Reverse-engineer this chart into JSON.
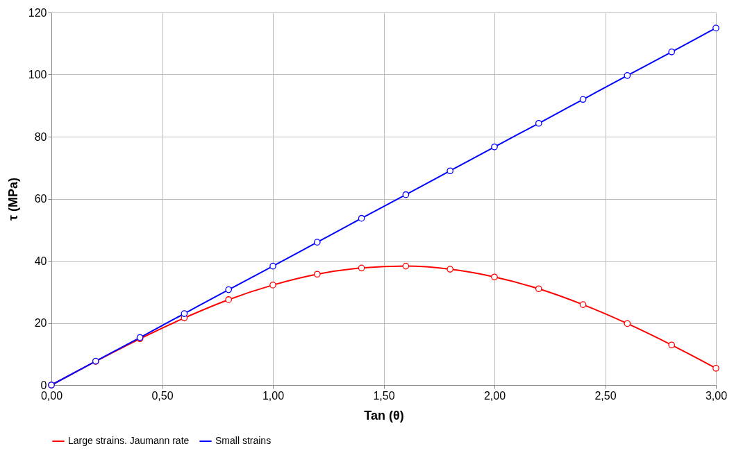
{
  "chart_data": {
    "type": "line",
    "xlabel": "Tan (θ)",
    "ylabel": "τ (MPa)",
    "x": [
      0,
      0.2,
      0.4,
      0.6,
      0.8,
      1.0,
      1.2,
      1.4,
      1.6,
      1.8,
      2.0,
      2.2,
      2.4,
      2.6,
      2.8,
      3.0
    ],
    "series": [
      {
        "name": "Large strains. Jaumann rate",
        "color": "#ff0000",
        "values": [
          0,
          7.6,
          14.9,
          21.6,
          27.5,
          32.2,
          35.7,
          37.7,
          38.3,
          37.3,
          34.8,
          31.0,
          25.9,
          19.8,
          12.9,
          5.4
        ]
      },
      {
        "name": "Small strains",
        "color": "#0000ff",
        "values": [
          0,
          7.7,
          15.3,
          23.0,
          30.7,
          38.3,
          46.0,
          53.7,
          61.3,
          69.0,
          76.7,
          84.3,
          92.0,
          99.7,
          107.3,
          115.0
        ]
      }
    ],
    "xlim": [
      0,
      3
    ],
    "xticks": [
      {
        "value": 0,
        "label": "0,00"
      },
      {
        "value": 0.5,
        "label": "0,50"
      },
      {
        "value": 1,
        "label": "1,00"
      },
      {
        "value": 1.5,
        "label": "1,50"
      },
      {
        "value": 2,
        "label": "2,00"
      },
      {
        "value": 2.5,
        "label": "2,50"
      },
      {
        "value": 3,
        "label": "3,00"
      }
    ],
    "ylim": [
      0,
      120
    ],
    "yticks": [
      0,
      20,
      40,
      60,
      80,
      100,
      120
    ],
    "grid": true,
    "legend": "bottom",
    "marker": "circle",
    "line_style": "solid"
  }
}
